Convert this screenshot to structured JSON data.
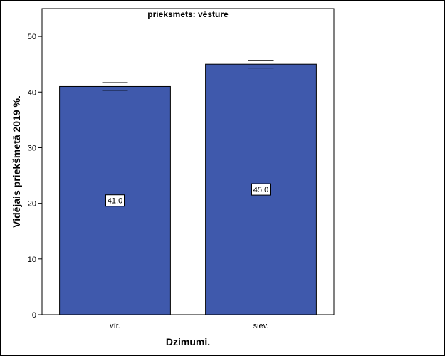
{
  "chart_data": {
    "type": "bar",
    "title": "prieksmets: vēsture",
    "xlabel": "Dzimumi.",
    "ylabel": "Vidējais priekšmetā 2019 %.",
    "categories": [
      "vīr.",
      "siev."
    ],
    "values": [
      41.0,
      45.0
    ],
    "data_labels": [
      "41,0",
      "45,0"
    ],
    "error_bars": [
      {
        "low": 40.3,
        "high": 41.7
      },
      {
        "low": 44.3,
        "high": 45.7
      }
    ],
    "ylim": [
      0,
      55
    ],
    "yticks": [
      0,
      10,
      20,
      30,
      40,
      50
    ],
    "grid": false,
    "legend": "none",
    "bar_color": "#3F59AC"
  }
}
